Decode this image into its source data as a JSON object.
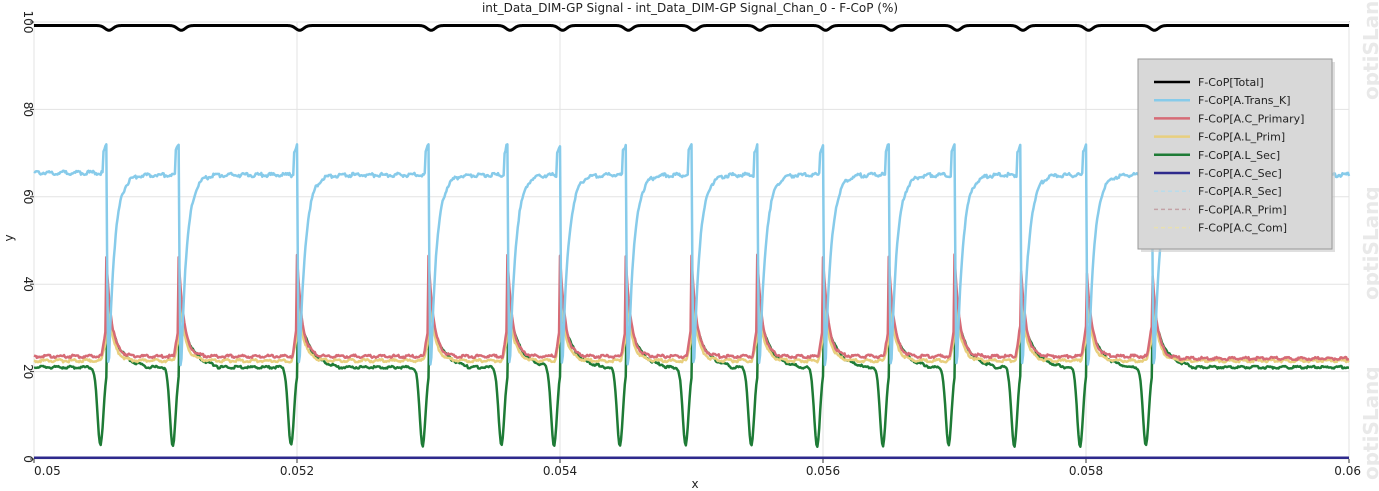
{
  "chart_data": {
    "type": "line",
    "title": "int_Data_DIM-GP Signal - int_Data_DIM-GP Signal_Chan_0 - F-CoP (%)",
    "xlabel": "x",
    "ylabel": "y",
    "xlim": [
      0.05,
      0.06
    ],
    "ylim": [
      0,
      100
    ],
    "xticks": [
      "0.05",
      "0.052",
      "0.054",
      "0.056",
      "0.058",
      "0.06"
    ],
    "yticks": [
      "0",
      "20",
      "40",
      "60",
      "80",
      "100"
    ],
    "grid": true,
    "legend_position": "top-right",
    "watermark": "optiSLang",
    "events": [
      {
        "x": 0.05055,
        "type": "A"
      },
      {
        "x": 0.0511,
        "type": "B"
      },
      {
        "x": 0.052,
        "type": "A"
      },
      {
        "x": 0.053,
        "type": "A"
      },
      {
        "x": 0.0536,
        "type": "B"
      },
      {
        "x": 0.054,
        "type": "A"
      },
      {
        "x": 0.0545,
        "type": "A"
      },
      {
        "x": 0.055,
        "type": "A"
      },
      {
        "x": 0.0555,
        "type": "A"
      },
      {
        "x": 0.056,
        "type": "A"
      },
      {
        "x": 0.0565,
        "type": "A"
      },
      {
        "x": 0.057,
        "type": "A"
      },
      {
        "x": 0.0575,
        "type": "A"
      },
      {
        "x": 0.058,
        "type": "A"
      },
      {
        "x": 0.0585,
        "type": "B"
      }
    ],
    "series": [
      {
        "name": "F-CoP[Total]",
        "color": "#000000",
        "style": "solid",
        "width": 3,
        "role": "total"
      },
      {
        "name": "F-CoP[A.Trans_K]",
        "color": "#87cbea",
        "style": "solid",
        "width": 2.5,
        "role": "trans"
      },
      {
        "name": "F-CoP[A.C_Primary]",
        "color": "#d66b76",
        "style": "solid",
        "width": 2.5,
        "role": "cprim"
      },
      {
        "name": "F-CoP[A.L_Prim]",
        "color": "#e8cf7e",
        "style": "solid",
        "width": 2.5,
        "role": "lprim"
      },
      {
        "name": "F-CoP[A.L_Sec]",
        "color": "#1e7b36",
        "style": "solid",
        "width": 2.5,
        "role": "lsec"
      },
      {
        "name": "F-CoP[A.C_Sec]",
        "color": "#2e2a8c",
        "style": "solid",
        "width": 2.5,
        "role": "csec"
      },
      {
        "name": "F-CoP[A.R_Sec]",
        "color": "#b9dceb",
        "style": "dashed",
        "width": 1.2,
        "role": "none"
      },
      {
        "name": "F-CoP[A.R_Prim]",
        "color": "#c3a2a6",
        "style": "dashed",
        "width": 1.2,
        "role": "none"
      },
      {
        "name": "F-CoP[A.C_Com]",
        "color": "#e8e0b0",
        "style": "dashed",
        "width": 1.2,
        "role": "none"
      }
    ]
  }
}
